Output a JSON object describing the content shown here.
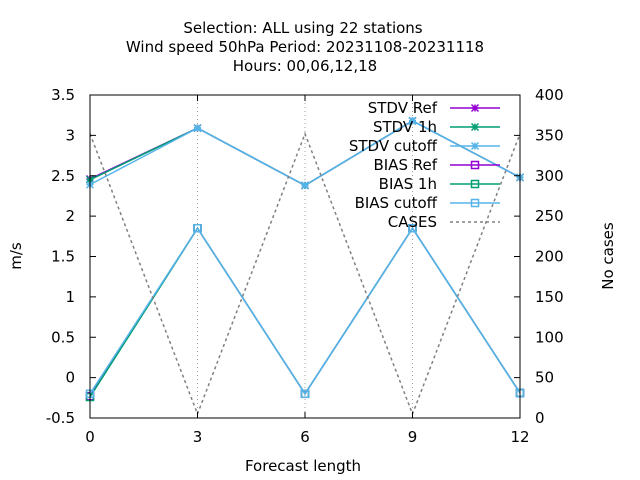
{
  "chart_data": {
    "type": "line",
    "title_lines": [
      "Selection: ALL using    22 stations",
      "Wind speed 50hPa   Period: 20231108-20231118",
      "Hours:  00,06,12,18"
    ],
    "xlabel": "Forecast length",
    "ylabel": "m/s",
    "y2label": "No cases",
    "x": [
      0,
      3,
      6,
      9,
      12
    ],
    "xlim": [
      0,
      12
    ],
    "ylim": [
      -0.5,
      3.5
    ],
    "y2lim": [
      0,
      400
    ],
    "x_ticks": [
      0,
      3,
      6,
      9,
      12
    ],
    "y_ticks": [
      -0.5,
      0,
      0.5,
      1,
      1.5,
      2,
      2.5,
      3,
      3.5
    ],
    "y2_ticks": [
      0,
      50,
      100,
      150,
      200,
      250,
      300,
      350,
      400
    ],
    "grid": true,
    "legend_position": "top-right",
    "series": [
      {
        "name": "STDV Ref",
        "axis": "y",
        "color": "#9400d3",
        "marker": "x",
        "dash": false,
        "values": [
          2.46,
          3.09,
          2.38,
          3.18,
          2.48
        ]
      },
      {
        "name": "STDV 1h",
        "axis": "y",
        "color": "#009e73",
        "marker": "x",
        "dash": false,
        "values": [
          2.45,
          3.09,
          2.38,
          3.18,
          2.48
        ]
      },
      {
        "name": "STDV cutoff",
        "axis": "y",
        "color": "#56b4e9",
        "marker": "x",
        "dash": false,
        "values": [
          2.39,
          3.09,
          2.38,
          3.18,
          2.48
        ]
      },
      {
        "name": "BIAS Ref",
        "axis": "y",
        "color": "#9400d3",
        "marker": "square",
        "dash": false,
        "values": [
          -0.23,
          1.85,
          -0.2,
          1.85,
          -0.19
        ]
      },
      {
        "name": "BIAS 1h",
        "axis": "y",
        "color": "#009e73",
        "marker": "square",
        "dash": false,
        "values": [
          -0.24,
          1.85,
          -0.2,
          1.85,
          -0.19
        ]
      },
      {
        "name": "BIAS cutoff",
        "axis": "y",
        "color": "#56b4e9",
        "marker": "square",
        "dash": false,
        "values": [
          -0.2,
          1.85,
          -0.2,
          1.85,
          -0.19
        ]
      },
      {
        "name": "CASES",
        "axis": "y2",
        "color": "#808080",
        "marker": "none",
        "dash": true,
        "values": [
          352,
          5,
          352,
          5,
          352
        ]
      }
    ]
  }
}
